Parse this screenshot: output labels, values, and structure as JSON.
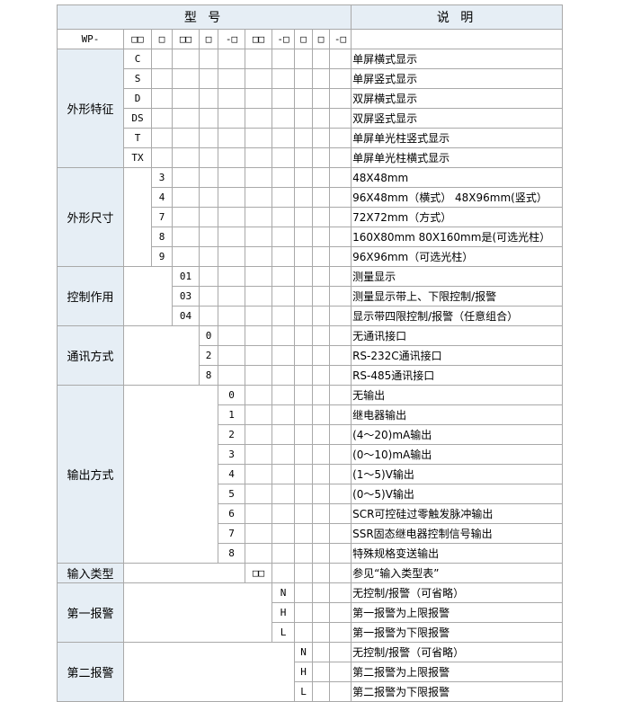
{
  "header": {
    "model": "型 号",
    "description": "说 明"
  },
  "prefix": "WP-",
  "slots": [
    "□□",
    "□",
    "□□",
    "□",
    "-□",
    "□□",
    "-□",
    "□",
    "□",
    "-□"
  ],
  "groups": [
    {
      "label": "外形特征",
      "col": 1,
      "rows": [
        {
          "code": "C",
          "desc": "单屏横式显示"
        },
        {
          "code": "S",
          "desc": "单屏竖式显示"
        },
        {
          "code": "D",
          "desc": "双屏横式显示"
        },
        {
          "code": "DS",
          "desc": "双屏竖式显示"
        },
        {
          "code": "T",
          "desc": "单屏单光柱竖式显示"
        },
        {
          "code": "TX",
          "desc": "单屏单光柱横式显示"
        }
      ]
    },
    {
      "label": "外形尺寸",
      "col": 2,
      "rows": [
        {
          "code": "3",
          "desc": "48X48mm"
        },
        {
          "code": "4",
          "desc": "96X48mm（横式） 48X96mm(竖式）"
        },
        {
          "code": "7",
          "desc": "72X72mm（方式）"
        },
        {
          "code": "8",
          "desc": "160X80mm 80X160mm是(可选光柱）"
        },
        {
          "code": "9",
          "desc": "96X96mm（可选光柱）"
        }
      ]
    },
    {
      "label": "控制作用",
      "col": 3,
      "rows": [
        {
          "code": "01",
          "desc": "测量显示"
        },
        {
          "code": "03",
          "desc": "测量显示带上、下限控制/报警"
        },
        {
          "code": "04",
          "desc": "显示带四限控制/报警（任意组合）"
        }
      ]
    },
    {
      "label": "通讯方式",
      "col": 4,
      "rows": [
        {
          "code": "0",
          "desc": "无通讯接口"
        },
        {
          "code": "2",
          "desc": "RS-232C通讯接口"
        },
        {
          "code": "8",
          "desc": "RS-485通讯接口"
        }
      ]
    },
    {
      "label": "输出方式",
      "col": 5,
      "rows": [
        {
          "code": "0",
          "desc": "无输出"
        },
        {
          "code": "1",
          "desc": "继电器输出"
        },
        {
          "code": "2",
          "desc": "(4～20)mA输出"
        },
        {
          "code": "3",
          "desc": "(0～10)mA输出"
        },
        {
          "code": "4",
          "desc": "(1～5)V输出"
        },
        {
          "code": "5",
          "desc": "(0～5)V输出"
        },
        {
          "code": "6",
          "desc": "SCR可控硅过零触发脉冲输出"
        },
        {
          "code": "7",
          "desc": "SSR固态继电器控制信号输出"
        },
        {
          "code": "8",
          "desc": "特殊规格变送输出"
        }
      ]
    },
    {
      "label": "输入类型",
      "col": 6,
      "rows": [
        {
          "code": "□□",
          "desc": "参见“输入类型表”"
        }
      ]
    },
    {
      "label": "第一报警",
      "col": 7,
      "rows": [
        {
          "code": "N",
          "desc": "无控制/报警（可省略）"
        },
        {
          "code": "H",
          "desc": "第一报警为上限报警"
        },
        {
          "code": "L",
          "desc": "第一报警为下限报警"
        }
      ]
    },
    {
      "label": "第二报警",
      "col": 8,
      "rows": [
        {
          "code": "N",
          "desc": "无控制/报警（可省略）"
        },
        {
          "code": "H",
          "desc": "第二报警为上限报警"
        },
        {
          "code": "L",
          "desc": "第二报警为下限报警"
        }
      ]
    }
  ]
}
